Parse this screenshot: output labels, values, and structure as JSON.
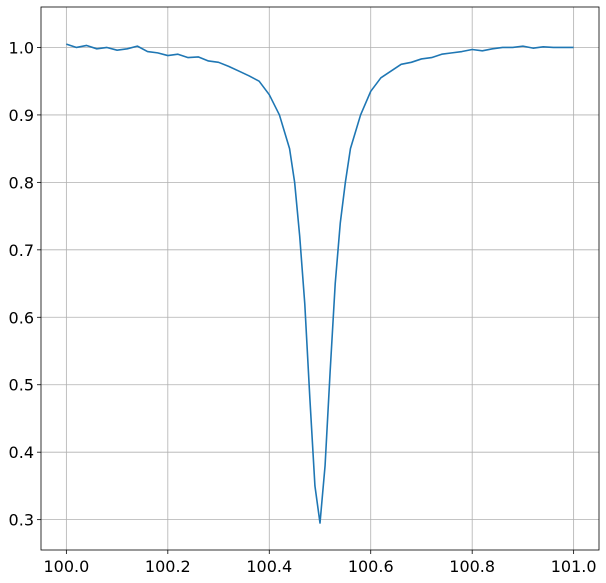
{
  "chart_data": {
    "type": "line",
    "title": "",
    "xlabel": "",
    "ylabel": "",
    "xlim": [
      99.95,
      101.05
    ],
    "ylim": [
      0.255,
      1.06
    ],
    "grid": true,
    "xticks": [
      100.0,
      100.2,
      100.4,
      100.6,
      100.8,
      101.0
    ],
    "xtick_labels": [
      "100.0",
      "100.2",
      "100.4",
      "100.6",
      "100.8",
      "101.0"
    ],
    "yticks": [
      0.3,
      0.4,
      0.5,
      0.6,
      0.7,
      0.8,
      0.9,
      1.0
    ],
    "ytick_labels": [
      "0.3",
      "0.4",
      "0.5",
      "0.6",
      "0.7",
      "0.8",
      "0.9",
      "1.0"
    ],
    "colors": {
      "line": "#1f77b4",
      "grid": "#b0b0b0",
      "frame": "#000000"
    },
    "series": [
      {
        "x": [
          100.0,
          100.02,
          100.04,
          100.06,
          100.08,
          100.1,
          100.12,
          100.14,
          100.16,
          100.18,
          100.2,
          100.22,
          100.24,
          100.26,
          100.28,
          100.3,
          100.32,
          100.34,
          100.36,
          100.38,
          100.4,
          100.42,
          100.44,
          100.45,
          100.46,
          100.47,
          100.48,
          100.49,
          100.5,
          100.51,
          100.52,
          100.53,
          100.54,
          100.55,
          100.56,
          100.58,
          100.6,
          100.62,
          100.64,
          100.66,
          100.68,
          100.7,
          100.72,
          100.74,
          100.76,
          100.78,
          100.8,
          100.82,
          100.84,
          100.86,
          100.88,
          100.9,
          100.92,
          100.94,
          100.96,
          100.98,
          101.0
        ],
        "values": [
          1.005,
          1.0,
          1.003,
          0.998,
          1.0,
          0.996,
          0.998,
          1.002,
          0.994,
          0.992,
          0.988,
          0.99,
          0.985,
          0.986,
          0.98,
          0.978,
          0.972,
          0.965,
          0.958,
          0.95,
          0.93,
          0.9,
          0.85,
          0.8,
          0.72,
          0.62,
          0.48,
          0.35,
          0.295,
          0.38,
          0.52,
          0.65,
          0.74,
          0.8,
          0.85,
          0.9,
          0.935,
          0.955,
          0.965,
          0.975,
          0.978,
          0.983,
          0.985,
          0.99,
          0.992,
          0.994,
          0.997,
          0.995,
          0.998,
          1.0,
          1.0,
          1.002,
          0.999,
          1.001,
          1.0,
          1.0,
          1.0
        ]
      }
    ]
  }
}
